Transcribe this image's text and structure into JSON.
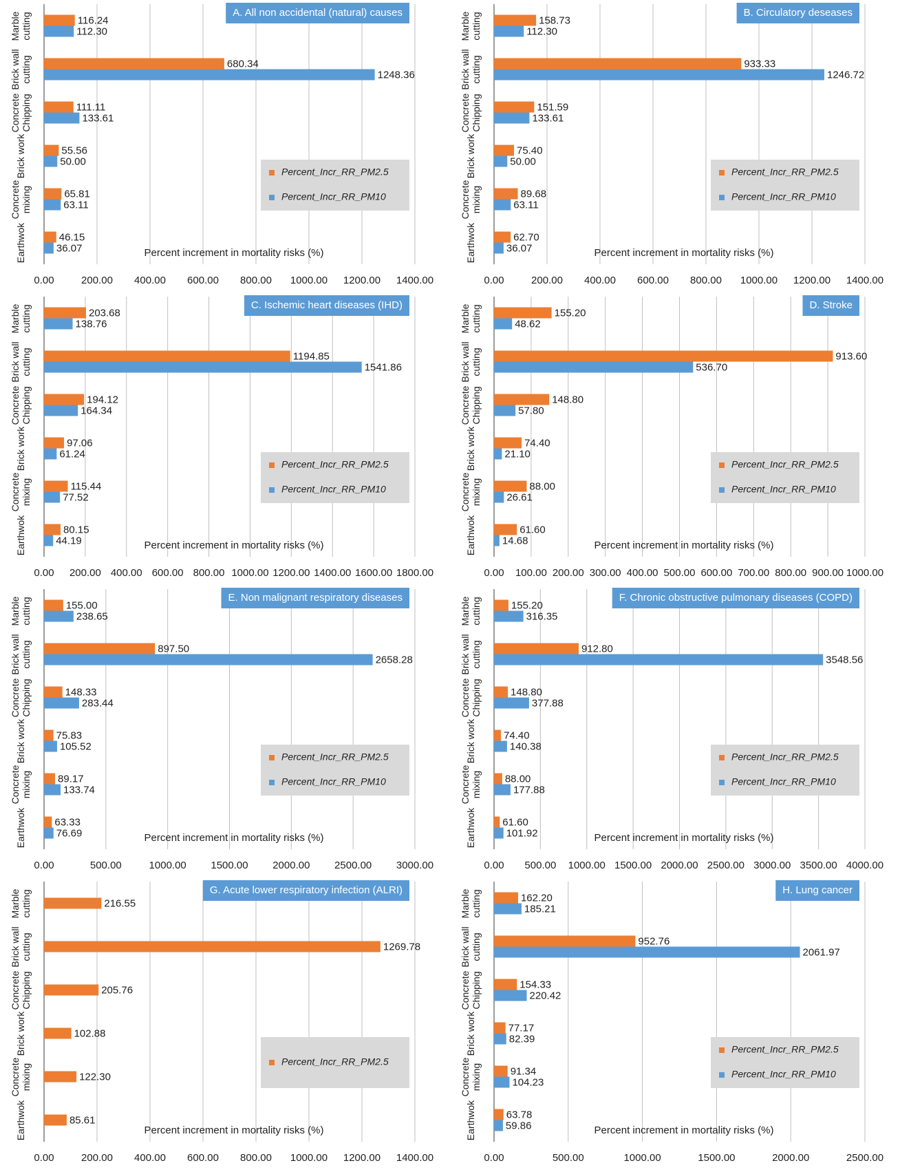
{
  "chart_data": [
    {
      "type": "barh",
      "title": "A. All non accidental (natural) causes",
      "x_label": "Percent increment in mortality risks (%)",
      "categories": [
        "Marble cutting",
        "Brick wall cutting",
        "Concrete Chipping",
        "Brick work",
        "Concrete mixing",
        "Earthwok"
      ],
      "series": [
        {
          "name": "Percent_Incr_RR_PM2.5",
          "color": "#ed7d31",
          "values": [
            116.24,
            680.34,
            111.11,
            55.56,
            65.81,
            46.15
          ],
          "value_labels": [
            "116.24",
            "680.34",
            "111.11",
            "55.56",
            "65.81",
            "46.15"
          ]
        },
        {
          "name": "Percent_Incr_RR_PM10",
          "color": "#5b9bd5",
          "values": [
            112.3,
            1248.36,
            133.61,
            50,
            63.11,
            36.07
          ],
          "value_labels": [
            "112.30",
            "1248.36",
            "133.61",
            "50.00",
            "63.11",
            "36.07"
          ]
        }
      ],
      "xlim": [
        0,
        1400
      ],
      "xticks": [
        {
          "value": 0,
          "label": "0.00"
        },
        {
          "value": 200,
          "label": "200.00"
        },
        {
          "value": 400,
          "label": "400.00"
        },
        {
          "value": 600,
          "label": "600.00"
        },
        {
          "value": 800,
          "label": "800.00"
        },
        {
          "value": 1000,
          "label": "1000.00"
        },
        {
          "value": 1200,
          "label": "1200.00"
        },
        {
          "value": 1400,
          "label": "1400.00"
        }
      ],
      "grid": true,
      "legend": "right"
    },
    {
      "type": "barh",
      "title": "B. Circulatory deseases",
      "x_label": "Percent increment in mortality risks (%)",
      "categories": [
        "Marble cutting",
        "Brick wall cutting",
        "Concrete Chipping",
        "Brick work",
        "Concrete mixing",
        "Earthwok"
      ],
      "series": [
        {
          "name": "Percent_Incr_RR_PM2.5",
          "color": "#ed7d31",
          "values": [
            158.73,
            933.33,
            151.59,
            75.4,
            89.68,
            62.7
          ],
          "value_labels": [
            "158.73",
            "933.33",
            "151.59",
            "75.40",
            "89.68",
            "62.70"
          ]
        },
        {
          "name": "Percent_Incr_RR_PM10",
          "color": "#5b9bd5",
          "values": [
            112.3,
            1246.72,
            133.61,
            50,
            63.11,
            36.07
          ],
          "value_labels": [
            "112.30",
            "1246.72",
            "133.61",
            "50.00",
            "63.11",
            "36.07"
          ]
        }
      ],
      "xlim": [
        0,
        1400
      ],
      "xticks": [
        {
          "value": 0,
          "label": "0.00"
        },
        {
          "value": 200,
          "label": "200.00"
        },
        {
          "value": 400,
          "label": "400.00"
        },
        {
          "value": 600,
          "label": "600.00"
        },
        {
          "value": 800,
          "label": "800.00"
        },
        {
          "value": 1000,
          "label": "1000.00"
        },
        {
          "value": 1200,
          "label": "1200.00"
        },
        {
          "value": 1400,
          "label": "1400.00"
        }
      ],
      "grid": true,
      "legend": "right"
    },
    {
      "type": "barh",
      "title": "C. Ischemic heart diseases (IHD)",
      "x_label": "Percent increment in mortality risks (%)",
      "categories": [
        "Marble cutting",
        "Brick wall cutting",
        "Concrete Chipping",
        "Brick work",
        "Concrete mixing",
        "Earthwok"
      ],
      "series": [
        {
          "name": "Percent_Incr_RR_PM2.5",
          "color": "#ed7d31",
          "values": [
            203.68,
            1194.85,
            194.12,
            97.06,
            115.44,
            80.15
          ],
          "value_labels": [
            "203.68",
            "1194.85",
            "194.12",
            "97.06",
            "115.44",
            "80.15"
          ]
        },
        {
          "name": "Percent_Incr_RR_PM10",
          "color": "#5b9bd5",
          "values": [
            138.76,
            1541.86,
            164.34,
            61.24,
            77.52,
            44.19
          ],
          "value_labels": [
            "138.76",
            "1541.86",
            "164.34",
            "61.24",
            "77.52",
            "44.19"
          ]
        }
      ],
      "xlim": [
        0,
        1800
      ],
      "xticks": [
        {
          "value": 0,
          "label": "0.00"
        },
        {
          "value": 200,
          "label": "200.00"
        },
        {
          "value": 400,
          "label": "400.00"
        },
        {
          "value": 600,
          "label": "600.00"
        },
        {
          "value": 800,
          "label": "800.00"
        },
        {
          "value": 1000,
          "label": "1000.00"
        },
        {
          "value": 1200,
          "label": "1200.00"
        },
        {
          "value": 1400,
          "label": "1400.00"
        },
        {
          "value": 1600,
          "label": "1600.00"
        },
        {
          "value": 1800,
          "label": "1800.00"
        }
      ],
      "grid": true,
      "legend": "right"
    },
    {
      "type": "barh",
      "title": "D. Stroke",
      "x_label": "Percent increment in mortality risks (%)",
      "categories": [
        "Marble cutting",
        "Brick wall cutting",
        "Concrete Chipping",
        "Brick work",
        "Concrete mixing",
        "Earthwok"
      ],
      "series": [
        {
          "name": "Percent_Incr_RR_PM2.5",
          "color": "#ed7d31",
          "values": [
            155.2,
            913.6,
            148.8,
            74.4,
            88,
            61.6
          ],
          "value_labels": [
            "155.20",
            "913.60",
            "148.80",
            "74.40",
            "88.00",
            "61.60"
          ]
        },
        {
          "name": "Percent_Incr_RR_PM10",
          "color": "#5b9bd5",
          "values": [
            48.62,
            536.7,
            57.8,
            21.1,
            26.61,
            14.68
          ],
          "value_labels": [
            "48.62",
            "536.70",
            "57.80",
            "21.10",
            "26.61",
            "14.68"
          ]
        }
      ],
      "xlim": [
        0,
        1000
      ],
      "xticks": [
        {
          "value": 0,
          "label": "0.00"
        },
        {
          "value": 100,
          "label": "100.00"
        },
        {
          "value": 200,
          "label": "200.00"
        },
        {
          "value": 300,
          "label": "300.00"
        },
        {
          "value": 400,
          "label": "400.00"
        },
        {
          "value": 500,
          "label": "500.00"
        },
        {
          "value": 600,
          "label": "600.00"
        },
        {
          "value": 700,
          "label": "700.00"
        },
        {
          "value": 800,
          "label": "800.00"
        },
        {
          "value": 900,
          "label": "900.00"
        },
        {
          "value": 1000,
          "label": "1000.00"
        }
      ],
      "grid": true,
      "legend": "right"
    },
    {
      "type": "barh",
      "title": "E. Non malignant respiratory diseases",
      "x_label": "Percent increment in mortality risks (%)",
      "categories": [
        "Marble cutting",
        "Brick wall cutting",
        "Concrete Chipping",
        "Brick work",
        "Concrete mixing",
        "Earthwok"
      ],
      "series": [
        {
          "name": "Percent_Incr_RR_PM2.5",
          "color": "#ed7d31",
          "values": [
            155,
            897.5,
            148.33,
            75.83,
            89.17,
            63.33
          ],
          "value_labels": [
            "155.00",
            "897.50",
            "148.33",
            "75.83",
            "89.17",
            "63.33"
          ]
        },
        {
          "name": "Percent_Incr_RR_PM10",
          "color": "#5b9bd5",
          "values": [
            238.65,
            2658.28,
            283.44,
            105.52,
            133.74,
            76.69
          ],
          "value_labels": [
            "238.65",
            "2658.28",
            "283.44",
            "105.52",
            "133.74",
            "76.69"
          ]
        }
      ],
      "xlim": [
        0,
        3000
      ],
      "xticks": [
        {
          "value": 0,
          "label": "0.00"
        },
        {
          "value": 500,
          "label": "500.00"
        },
        {
          "value": 1000,
          "label": "1000.00"
        },
        {
          "value": 1500,
          "label": "1500.00"
        },
        {
          "value": 2000,
          "label": "2000.00"
        },
        {
          "value": 2500,
          "label": "2500.00"
        },
        {
          "value": 3000,
          "label": "3000.00"
        }
      ],
      "grid": true,
      "legend": "right"
    },
    {
      "type": "barh",
      "title": "F. Chronic obstructive pulmonary diseases (COPD)",
      "x_label": "Percent increment in mortality risks (%)",
      "categories": [
        "Marble cutting",
        "Brick wall cutting",
        "Concrete Chipping",
        "Brick work",
        "Concrete mixing",
        "Earthwok"
      ],
      "series": [
        {
          "name": "Percent_Incr_RR_PM2.5",
          "color": "#ed7d31",
          "values": [
            155.2,
            912.8,
            148.8,
            74.4,
            88,
            61.6
          ],
          "value_labels": [
            "155.20",
            "912.80",
            "148.80",
            "74.40",
            "88.00",
            "61.60"
          ]
        },
        {
          "name": "Percent_Incr_RR_PM10",
          "color": "#5b9bd5",
          "values": [
            316.35,
            3548.56,
            377.88,
            140.38,
            177.88,
            101.92
          ],
          "value_labels": [
            "316.35",
            "3548.56",
            "377.88",
            "140.38",
            "177.88",
            "101.92"
          ]
        }
      ],
      "xlim": [
        0,
        4000
      ],
      "xticks": [
        {
          "value": 0,
          "label": "0.00"
        },
        {
          "value": 500,
          "label": "500.00"
        },
        {
          "value": 1000,
          "label": "1000.00"
        },
        {
          "value": 1500,
          "label": "1500.00"
        },
        {
          "value": 2000,
          "label": "2000.00"
        },
        {
          "value": 2500,
          "label": "2500.00"
        },
        {
          "value": 3000,
          "label": "3000.00"
        },
        {
          "value": 3500,
          "label": "3500.00"
        },
        {
          "value": 4000,
          "label": "4000.00"
        }
      ],
      "grid": true,
      "legend": "right"
    },
    {
      "type": "barh",
      "title": "G. Acute lower respiratory infection (ALRI)",
      "x_label": "Percent increment in mortality risks (%)",
      "categories": [
        "Marble cutting",
        "Brick wall cutting",
        "Concrete Chipping",
        "Brick work",
        "Concrete mixing",
        "Earthwok"
      ],
      "series": [
        {
          "name": "Percent_Incr_RR_PM2.5",
          "color": "#ed7d31",
          "values": [
            216.55,
            1269.78,
            205.76,
            102.88,
            122.3,
            85.61
          ],
          "value_labels": [
            "216.55",
            "1269.78",
            "205.76",
            "102.88",
            "122.30",
            "85.61"
          ]
        }
      ],
      "xlim": [
        0,
        1400
      ],
      "xticks": [
        {
          "value": 0,
          "label": "0.00"
        },
        {
          "value": 200,
          "label": "200.00"
        },
        {
          "value": 400,
          "label": "400.00"
        },
        {
          "value": 600,
          "label": "600.00"
        },
        {
          "value": 800,
          "label": "800.00"
        },
        {
          "value": 1000,
          "label": "1000.00"
        },
        {
          "value": 1200,
          "label": "1200.00"
        },
        {
          "value": 1400,
          "label": "1400.00"
        }
      ],
      "grid": true,
      "legend": "right"
    },
    {
      "type": "barh",
      "title": "H. Lung cancer",
      "x_label": "Percent increment in mortality risks (%)",
      "categories": [
        "Marble cutting",
        "Brick wall cutting",
        "Concrete Chipping",
        "Brick work",
        "Concrete mixing",
        "Earthwok"
      ],
      "series": [
        {
          "name": "Percent_Incr_RR_PM2.5",
          "color": "#ed7d31",
          "values": [
            162.2,
            952.76,
            154.33,
            77.17,
            91.34,
            63.78
          ],
          "value_labels": [
            "162.20",
            "952.76",
            "154.33",
            "77.17",
            "91.34",
            "63.78"
          ]
        },
        {
          "name": "Percent_Incr_RR_PM10",
          "color": "#5b9bd5",
          "values": [
            185.21,
            2061.97,
            220.42,
            82.39,
            104.23,
            59.86
          ],
          "value_labels": [
            "185.21",
            "2061.97",
            "220.42",
            "82.39",
            "104.23",
            "59.86"
          ]
        }
      ],
      "xlim": [
        0,
        2500
      ],
      "xticks": [
        {
          "value": 0,
          "label": "0.00"
        },
        {
          "value": 500,
          "label": "500.00"
        },
        {
          "value": 1000,
          "label": "1000.00"
        },
        {
          "value": 1500,
          "label": "1500.00"
        },
        {
          "value": 2000,
          "label": "2000.00"
        },
        {
          "value": 2500,
          "label": "2500.00"
        }
      ],
      "grid": true,
      "legend": "right"
    }
  ]
}
